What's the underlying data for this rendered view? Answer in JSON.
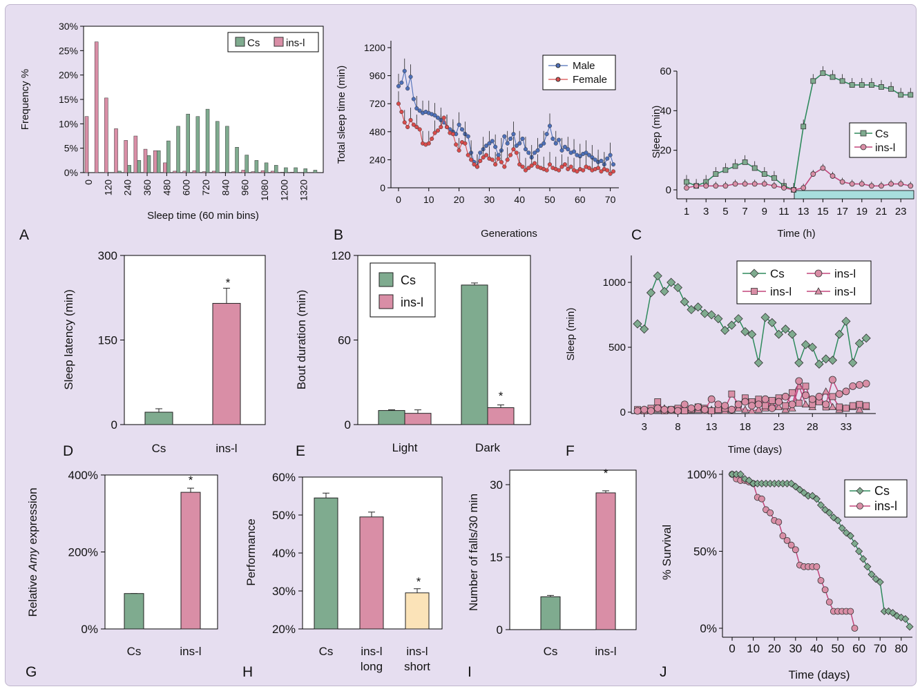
{
  "colors": {
    "cs": "#7fab8f",
    "insl": "#d98ea6",
    "short": "#fbe3b8",
    "male": "#4d6fb8",
    "female": "#d94c4c",
    "lightbar": "#a8dedd"
  },
  "panels": [
    {
      "letter": "A",
      "chart_data": {
        "type": "bar",
        "xlabel": "Sleep time (60 min bins)",
        "ylabel": "Frequency %",
        "ylim": [
          0,
          30
        ],
        "yticks": [
          "0%",
          "5%",
          "10%",
          "15%",
          "20%",
          "25%",
          "30%"
        ],
        "xticks": [
          "0",
          "120",
          "240",
          "360",
          "480",
          "600",
          "720",
          "840",
          "960",
          "1080",
          "1200",
          "1320"
        ],
        "legend": {
          "position": "top-right",
          "entries": [
            "Cs",
            "ins-l"
          ]
        },
        "x": [
          0,
          60,
          120,
          180,
          240,
          300,
          360,
          420,
          480,
          540,
          600,
          660,
          720,
          780,
          840,
          900,
          960,
          1020,
          1080,
          1140,
          1200,
          1260,
          1320,
          1380
        ],
        "series": [
          {
            "name": "Cs",
            "values": [
              0,
              0,
              0,
              0.3,
              1.5,
              2.5,
              3.5,
              4.5,
              6.5,
              9.5,
              12,
              11.5,
              13,
              10.5,
              9.5,
              5.2,
              3.6,
              2.5,
              2,
              1.5,
              1,
              1,
              0.8,
              0.5
            ]
          },
          {
            "name": "ins-l",
            "values": [
              11.5,
              26.8,
              15.3,
              9,
              6.6,
              7.5,
              4.8,
              4.5,
              2,
              0.3,
              0.3,
              0.4,
              0.2,
              0.3,
              0.1,
              0.2,
              0.5,
              0.2,
              0.4,
              0.3,
              0.1,
              0.1,
              0,
              0
            ]
          }
        ]
      }
    },
    {
      "letter": "B",
      "chart_data": {
        "type": "line",
        "xlabel": "Generations",
        "ylabel": "Total sleep time (min)",
        "ylim": [
          0,
          1200
        ],
        "yticks": [
          0,
          240,
          480,
          720,
          960,
          1200
        ],
        "xlim": [
          0,
          72
        ],
        "xticks": [
          0,
          10,
          20,
          30,
          40,
          50,
          60,
          70
        ],
        "legend": {
          "position": "top-right",
          "entries": [
            "Male",
            "Female"
          ]
        },
        "series": [
          {
            "name": "Male",
            "values": [
              870,
              900,
              1000,
              850,
              950,
              760,
              680,
              660,
              640,
              650,
              640,
              630,
              620,
              600,
              580,
              560,
              520,
              500,
              480,
              460,
              540,
              500,
              460,
              440,
              300,
              220,
              180,
              300,
              330,
              360,
              380,
              400,
              350,
              280,
              320,
              440,
              380,
              420,
              460,
              360,
              380,
              420,
              330,
              300,
              260,
              300,
              320,
              360,
              380,
              460,
              530,
              420,
              380,
              410,
              320,
              350,
              330,
              300,
              310,
              280,
              270,
              290,
              300,
              280,
              260,
              240,
              220,
              230,
              200,
              250,
              280,
              200
            ]
          },
          {
            "name": "Female",
            "values": [
              720,
              650,
              560,
              520,
              580,
              540,
              520,
              500,
              380,
              370,
              380,
              420,
              470,
              490,
              520,
              600,
              520,
              470,
              460,
              370,
              320,
              390,
              380,
              280,
              240,
              200,
              180,
              230,
              260,
              280,
              250,
              240,
              200,
              250,
              220,
              180,
              240,
              280,
              330,
              300,
              200,
              180,
              150,
              170,
              190,
              210,
              180,
              170,
              160,
              150,
              200,
              170,
              160,
              150,
              180,
              200,
              160,
              180,
              150,
              140,
              160,
              150,
              180,
              170,
              150,
              160,
              170,
              140,
              160,
              150,
              120,
              140
            ]
          }
        ]
      }
    },
    {
      "letter": "C",
      "chart_data": {
        "type": "line",
        "xlabel": "Time (h)",
        "ylabel": "Sleep (min)",
        "ylim": [
          0,
          60
        ],
        "yticks": [
          0,
          20,
          40,
          60
        ],
        "xticks": [
          1,
          3,
          5,
          7,
          9,
          11,
          13,
          15,
          17,
          19,
          21,
          23
        ],
        "legend": {
          "position": "middle-right",
          "entries": [
            "Cs",
            "ins-l"
          ]
        },
        "x": [
          1,
          2,
          3,
          4,
          5,
          6,
          7,
          8,
          9,
          10,
          11,
          12,
          13,
          14,
          15,
          16,
          17,
          18,
          19,
          20,
          21,
          22,
          23,
          24
        ],
        "series": [
          {
            "name": "Cs",
            "values": [
              4,
              2,
              4,
              8,
              10,
              12,
              14,
              11,
              8,
              6,
              2,
              0,
              32,
              55,
              59,
              57,
              55,
              53,
              53,
              53,
              52,
              51,
              48,
              48
            ]
          },
          {
            "name": "ins-l",
            "values": [
              1,
              2,
              2,
              2,
              2,
              3,
              3,
              3,
              3,
              2,
              1,
              0,
              1,
              8,
              11,
              7,
              4,
              3,
              3,
              2,
              2,
              3,
              3,
              2
            ]
          }
        ]
      }
    },
    {
      "letter": "D",
      "chart_data": {
        "type": "bar",
        "ylabel": "Sleep latency (min)",
        "categories": [
          "Cs",
          "ins-l"
        ],
        "values": [
          22,
          215
        ],
        "ylim": [
          0,
          300
        ],
        "yticks": [
          0,
          150,
          300
        ],
        "annotations": [
          "*"
        ]
      }
    },
    {
      "letter": "E",
      "chart_data": {
        "type": "bar",
        "ylabel": "Bout duration (min)",
        "categories": [
          "Light",
          "Dark"
        ],
        "series": [
          {
            "name": "Cs",
            "values": [
              10,
              99
            ]
          },
          {
            "name": "ins-l",
            "values": [
              8,
              12
            ]
          }
        ],
        "ylim": [
          0,
          120
        ],
        "yticks": [
          0,
          60,
          120
        ],
        "annotations": [
          "*"
        ],
        "legend": {
          "position": "top-left",
          "entries": [
            "Cs",
            "ins-l"
          ]
        }
      }
    },
    {
      "letter": "F",
      "chart_data": {
        "type": "line",
        "xlabel": "Time (days)",
        "ylabel": "Sleep (min)",
        "ylim": [
          0,
          1100
        ],
        "yticks": [
          0,
          500,
          1000
        ],
        "xticks": [
          3,
          8,
          13,
          18,
          23,
          28,
          33
        ],
        "legend": {
          "position": "top",
          "entries": [
            "Cs",
            "ins-l",
            "ins-l",
            "ins-l"
          ]
        },
        "x_start": 2,
        "series": [
          {
            "name": "Cs",
            "values": [
              680,
              640,
              920,
              1050,
              930,
              1000,
              960,
              850,
              790,
              810,
              760,
              750,
              720,
              630,
              670,
              720,
              620,
              600,
              380,
              730,
              690,
              600,
              640,
              600,
              380,
              520,
              500,
              370,
              410,
              400,
              600,
              700,
              380,
              530,
              570
            ]
          },
          {
            "name": "ins-l",
            "values": [
              10,
              20,
              10,
              30,
              20,
              20,
              10,
              60,
              30,
              40,
              20,
              100,
              60,
              50,
              20,
              60,
              80,
              50,
              60,
              100,
              30,
              80,
              120,
              60,
              240,
              130,
              100,
              120,
              60,
              250,
              140,
              160,
              200,
              210,
              220
            ]
          },
          {
            "name": "ins-l",
            "values": [
              20,
              10,
              30,
              80,
              10,
              20,
              30,
              10,
              20,
              40,
              30,
              10,
              20,
              30,
              140,
              60,
              110,
              80,
              100,
              50,
              90,
              110,
              50,
              150,
              70,
              200,
              60,
              80,
              40,
              120,
              40,
              30,
              50,
              60,
              50
            ]
          },
          {
            "name": "ins-l",
            "values": [
              10,
              20,
              10,
              20,
              30,
              10,
              20,
              10,
              30,
              20,
              10,
              20,
              30,
              10,
              20,
              30,
              20,
              10,
              20,
              30,
              60,
              40,
              20,
              30,
              200,
              60,
              40,
              90,
              160,
              40,
              20,
              30,
              40,
              20,
              40
            ]
          }
        ]
      }
    },
    {
      "letter": "G",
      "chart_data": {
        "type": "bar",
        "ylabel_parts": [
          "Relative ",
          "Amy",
          " expression"
        ],
        "categories": [
          "Cs",
          "ins-l"
        ],
        "values": [
          92,
          355
        ],
        "ylim": [
          0,
          400
        ],
        "yticks": [
          "0%",
          "200%",
          "400%"
        ],
        "annotations": [
          "*"
        ]
      }
    },
    {
      "letter": "H",
      "chart_data": {
        "type": "bar",
        "ylabel": "Performance",
        "categories": [
          [
            "Cs"
          ],
          [
            "ins-l",
            "long"
          ],
          [
            "ins-l",
            "short"
          ]
        ],
        "values": [
          54.5,
          49.5,
          29.5
        ],
        "ylim": [
          20,
          60
        ],
        "yticks": [
          "20%",
          "30%",
          "40%",
          "50%",
          "60%"
        ],
        "annotations": [
          "*"
        ]
      }
    },
    {
      "letter": "I",
      "chart_data": {
        "type": "bar",
        "ylabel": "Number of falls/30 min",
        "categories": [
          "Cs",
          "ins-l"
        ],
        "values": [
          6.8,
          28.3
        ],
        "ylim": [
          0,
          33
        ],
        "yticks": [
          0,
          15,
          30
        ],
        "annotations": [
          "*"
        ]
      }
    },
    {
      "letter": "J",
      "chart_data": {
        "type": "line",
        "xlabel": "Time (days)",
        "ylabel": "% Survival",
        "ylim": [
          0,
          100
        ],
        "yticks": [
          "0%",
          "50%",
          "100%"
        ],
        "xlim": [
          0,
          85
        ],
        "xticks": [
          0,
          10,
          20,
          30,
          40,
          50,
          60,
          70,
          80
        ],
        "legend": {
          "position": "top-right",
          "entries": [
            "Cs",
            "ins-l"
          ]
        },
        "series": [
          {
            "name": "Cs",
            "x": [
              0,
              2,
              4,
              6,
              8,
              10,
              12,
              14,
              16,
              18,
              20,
              22,
              24,
              26,
              28,
              30,
              32,
              34,
              36,
              38,
              40,
              42,
              44,
              46,
              48,
              50,
              52,
              54,
              56,
              58,
              60,
              62,
              64,
              66,
              68,
              70,
              72,
              74,
              76,
              78,
              80,
              82,
              84
            ],
            "values": [
              100,
              100,
              100,
              97,
              96,
              94,
              94,
              94,
              94,
              94,
              94,
              94,
              94,
              94,
              94,
              92,
              90,
              88,
              86,
              86,
              84,
              80,
              77,
              75,
              72,
              70,
              65,
              62,
              60,
              55,
              50,
              45,
              40,
              35,
              32,
              30,
              11,
              11,
              10,
              8,
              7,
              6,
              1
            ]
          },
          {
            "name": "ins-l",
            "x": [
              0,
              2,
              4,
              6,
              8,
              10,
              12,
              14,
              16,
              18,
              20,
              22,
              24,
              26,
              28,
              30,
              32,
              34,
              36,
              38,
              40,
              42,
              44,
              46,
              48,
              50,
              52,
              54,
              56,
              58
            ],
            "values": [
              100,
              97,
              96,
              96,
              95,
              94,
              85,
              84,
              77,
              75,
              70,
              69,
              60,
              57,
              54,
              51,
              41,
              40,
              40,
              40,
              40,
              31,
              25,
              17,
              11,
              11,
              11,
              11,
              11,
              0
            ]
          }
        ]
      }
    }
  ]
}
